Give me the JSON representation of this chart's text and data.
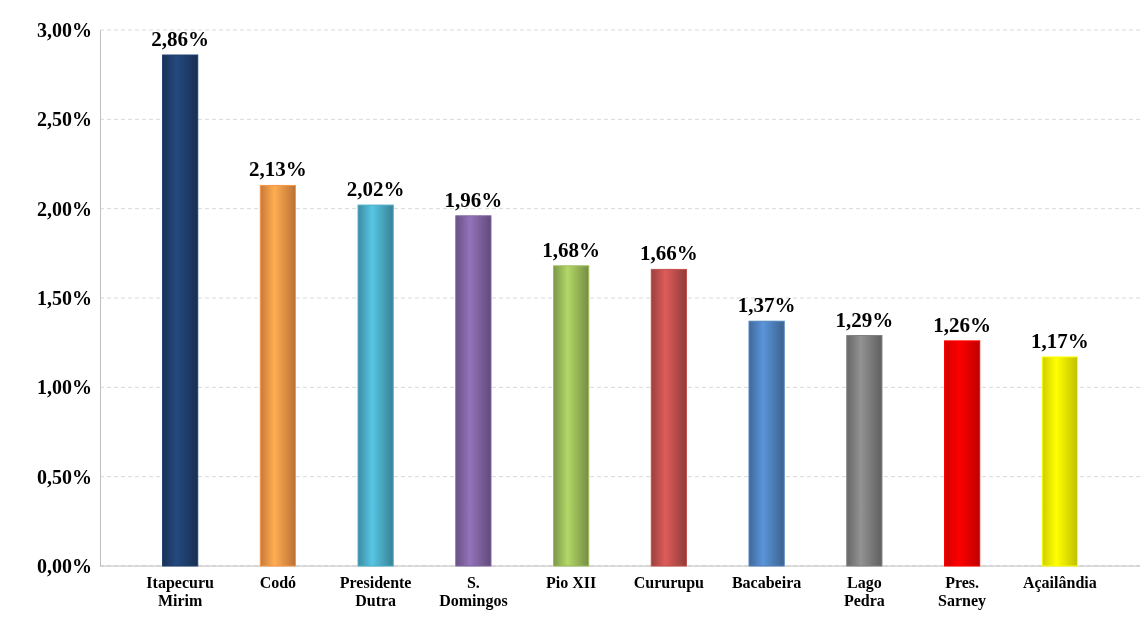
{
  "chart_data": {
    "type": "bar",
    "categories": [
      "Itapecuru Mirim",
      "Codó",
      "Presidente Dutra",
      "S. Domingos",
      "Pio XII",
      "Cururupu",
      "Bacabeira",
      "Lago Pedra",
      "Pres. Sarney",
      "Açailândia"
    ],
    "values": [
      2.86,
      2.13,
      2.02,
      1.96,
      1.68,
      1.66,
      1.37,
      1.29,
      1.26,
      1.17
    ],
    "value_labels": [
      "2,86%",
      "2,13%",
      "2,02%",
      "1,96%",
      "1,68%",
      "1,66%",
      "1,37%",
      "1,29%",
      "1,26%",
      "1,17%"
    ],
    "colors": [
      "#1f3f6e",
      "#f79646",
      "#4bacc6",
      "#8064a2",
      "#9bbb59",
      "#c0504d",
      "#4f81bd",
      "#7f7f7f",
      "#ff0000",
      "#ffff00"
    ],
    "ylim": [
      0,
      3
    ],
    "yticks": [
      {
        "value": 0,
        "label": "0,00%"
      },
      {
        "value": 0.5,
        "label": "0,50%"
      },
      {
        "value": 1,
        "label": "1,00%"
      },
      {
        "value": 1.5,
        "label": "1,50%"
      },
      {
        "value": 2,
        "label": "2,00%"
      },
      {
        "value": 2.5,
        "label": "2,50%"
      },
      {
        "value": 3,
        "label": "3,00%"
      }
    ],
    "grid": "y"
  }
}
